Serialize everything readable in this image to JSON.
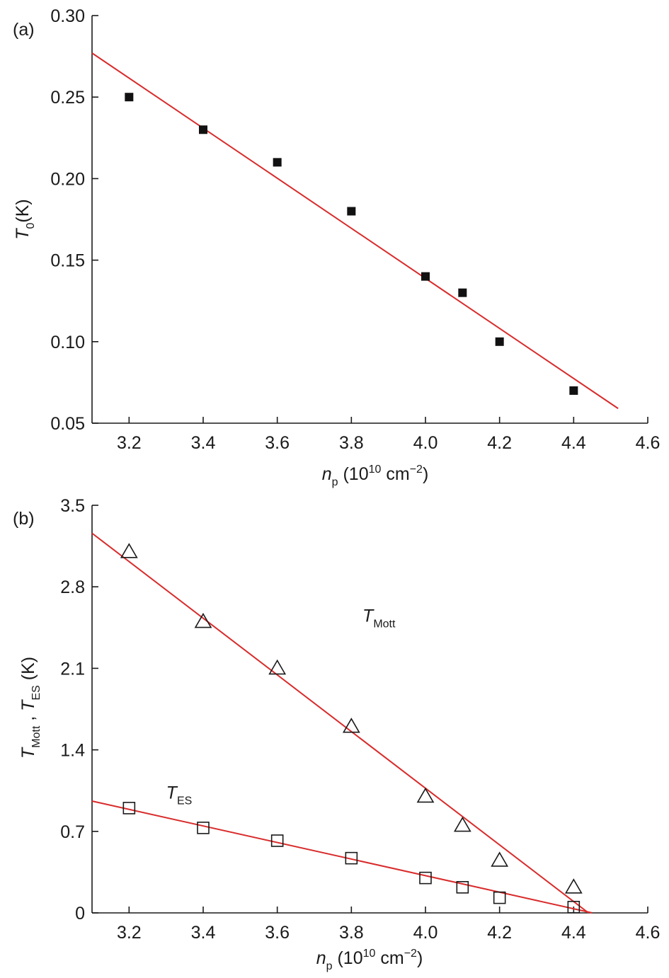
{
  "chart_data": [
    {
      "panel": "(a)",
      "type": "scatter",
      "xlabel": {
        "main": "n",
        "sub": "p",
        "rest": " (10",
        "sup": "10",
        "unit": " cm",
        "unit_sup": "−2",
        "close": ")"
      },
      "ylabel": {
        "main": "T",
        "sub": "0",
        "rest": "(K)"
      },
      "xlim": [
        3.1,
        4.6
      ],
      "ylim": [
        0.05,
        0.3
      ],
      "xticks": [
        3.2,
        3.4,
        3.6,
        3.8,
        4.0,
        4.2,
        4.4,
        4.6
      ],
      "xtick_labels": [
        "3.2",
        "3.4",
        "3.6",
        "3.8",
        "4.0",
        "4.2",
        "4.4",
        "4.6"
      ],
      "yticks": [
        0.05,
        0.1,
        0.15,
        0.2,
        0.25,
        0.3
      ],
      "ytick_labels": [
        "0.05",
        "0.10",
        "0.15",
        "0.20",
        "0.25",
        "0.30"
      ],
      "series": [
        {
          "marker": "filled-square",
          "x": [
            3.2,
            3.4,
            3.6,
            3.8,
            4.0,
            4.1,
            4.2,
            4.4
          ],
          "y": [
            0.25,
            0.23,
            0.21,
            0.18,
            0.14,
            0.13,
            0.1,
            0.07
          ]
        }
      ],
      "fits": [
        {
          "color": "#d92b2b",
          "x": [
            3.1,
            4.52
          ],
          "y": [
            0.277,
            0.059
          ]
        }
      ]
    },
    {
      "panel": "(b)",
      "type": "scatter",
      "xlabel": {
        "main": "n",
        "sub": "p",
        "rest": " (10",
        "sup": "10",
        "unit": " cm",
        "unit_sup": "−2",
        "close": ")"
      },
      "ylabel": {
        "main1": "T",
        "sub1": "Mott",
        "sep": " , ",
        "main2": "T",
        "sub2": "ES",
        "rest": " (K)"
      },
      "xlim": [
        3.1,
        4.6
      ],
      "ylim": [
        0,
        3.5
      ],
      "xticks": [
        3.2,
        3.4,
        3.6,
        3.8,
        4.0,
        4.2,
        4.4,
        4.6
      ],
      "xtick_labels": [
        "3.2",
        "3.4",
        "3.6",
        "3.8",
        "4.0",
        "4.2",
        "4.4",
        "4.6"
      ],
      "yticks": [
        0,
        0.7,
        1.4,
        2.1,
        2.8,
        3.5
      ],
      "ytick_labels": [
        "0",
        "0.7",
        "1.4",
        "2.1",
        "2.8",
        "3.5"
      ],
      "series": [
        {
          "name_main": "T",
          "name_sub": "Mott",
          "marker": "open-triangle",
          "label_at": [
            3.83,
            2.5
          ],
          "x": [
            3.2,
            3.4,
            3.6,
            3.8,
            4.0,
            4.1,
            4.2,
            4.4
          ],
          "y": [
            3.1,
            2.5,
            2.1,
            1.6,
            1.0,
            0.75,
            0.45,
            0.22
          ]
        },
        {
          "name_main": "T",
          "name_sub": "ES",
          "marker": "open-square",
          "label_at": [
            3.3,
            0.98
          ],
          "x": [
            3.2,
            3.4,
            3.6,
            3.8,
            4.0,
            4.1,
            4.2,
            4.4
          ],
          "y": [
            0.9,
            0.73,
            0.62,
            0.47,
            0.3,
            0.22,
            0.13,
            0.05
          ]
        }
      ],
      "fits": [
        {
          "color": "#d92b2b",
          "x": [
            3.1,
            4.44
          ],
          "y": [
            3.26,
            0.0
          ]
        },
        {
          "color": "#d92b2b",
          "x": [
            3.1,
            4.45
          ],
          "y": [
            0.96,
            0.0
          ]
        }
      ]
    }
  ]
}
